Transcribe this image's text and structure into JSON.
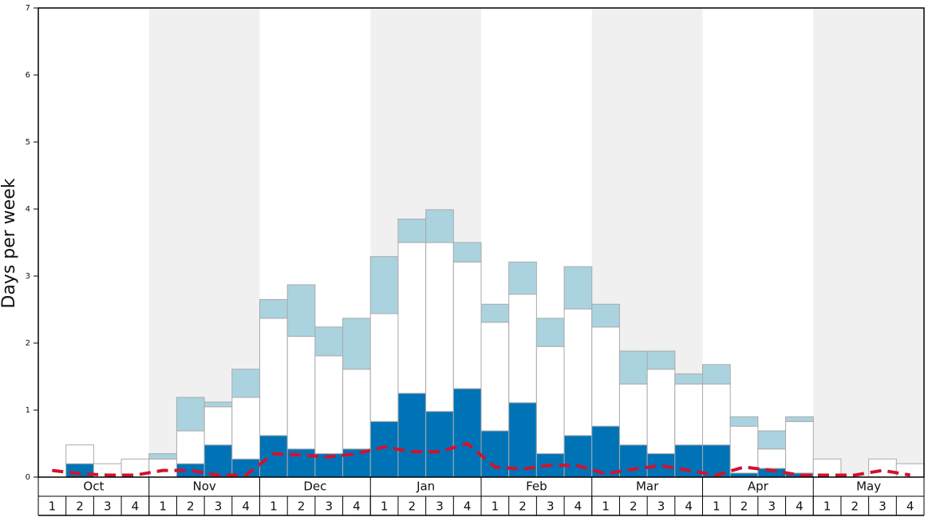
{
  "chart_data": {
    "type": "stacked_bar",
    "y_label": "Days per week",
    "months": [
      "Oct",
      "Nov",
      "Dec",
      "Jan",
      "Feb",
      "Mar",
      "Apr",
      "May"
    ],
    "categories": [
      "1",
      "2",
      "3",
      "4",
      "1",
      "2",
      "3",
      "4",
      "1",
      "2",
      "3",
      "4",
      "1",
      "2",
      "3",
      "4",
      "1",
      "2",
      "3",
      "4",
      "1",
      "2",
      "3",
      "4",
      "1",
      "2",
      "3",
      "4",
      "1",
      "2",
      "3",
      "4"
    ],
    "series": [
      {
        "color": "#0073b6",
        "values": [
          0,
          0.2,
          0,
          0,
          0,
          0.2,
          0.48,
          0.27,
          0.62,
          0.42,
          0.35,
          0.42,
          0.83,
          1.25,
          0.98,
          1.32,
          0.69,
          1.11,
          0.35,
          0.62,
          0.76,
          0.48,
          0.35,
          0.48,
          0.48,
          0.06,
          0.13,
          0.06,
          0,
          0,
          0,
          0
        ]
      },
      {
        "color": "#ffffff",
        "values": [
          0,
          0.28,
          0.2,
          0.27,
          0.27,
          0.49,
          0.57,
          0.92,
          1.75,
          1.68,
          1.46,
          1.19,
          1.61,
          2.25,
          2.52,
          1.89,
          1.62,
          1.62,
          1.6,
          1.89,
          1.48,
          0.91,
          1.26,
          0.91,
          0.91,
          0.7,
          0.29,
          0.77,
          0.27,
          0,
          0.27,
          0.2
        ]
      },
      {
        "color": "#aad3df",
        "values": [
          0,
          0,
          0,
          0,
          0.08,
          0.5,
          0.07,
          0.42,
          0.28,
          0.77,
          0.43,
          0.76,
          0.85,
          0.35,
          0.49,
          0.29,
          0.27,
          0.48,
          0.42,
          0.63,
          0.34,
          0.49,
          0.27,
          0.15,
          0.29,
          0.14,
          0.27,
          0.07,
          0,
          0,
          0,
          0
        ]
      }
    ],
    "line": {
      "color": "#d2122e",
      "values": [
        0.1,
        0.05,
        0.03,
        0.03,
        0.1,
        0.1,
        0.03,
        0.03,
        0.35,
        0.33,
        0.3,
        0.35,
        0.45,
        0.38,
        0.38,
        0.5,
        0.15,
        0.12,
        0.18,
        0.17,
        0.05,
        0.12,
        0.17,
        0.1,
        0.03,
        0.15,
        0.1,
        0.03,
        0.03,
        0.03,
        0.1,
        0.03
      ]
    },
    "ylim": [
      0,
      7
    ],
    "yticks": [
      0,
      1,
      2,
      3,
      4,
      5,
      6,
      7
    ],
    "band_color": "#f0f0f0"
  }
}
